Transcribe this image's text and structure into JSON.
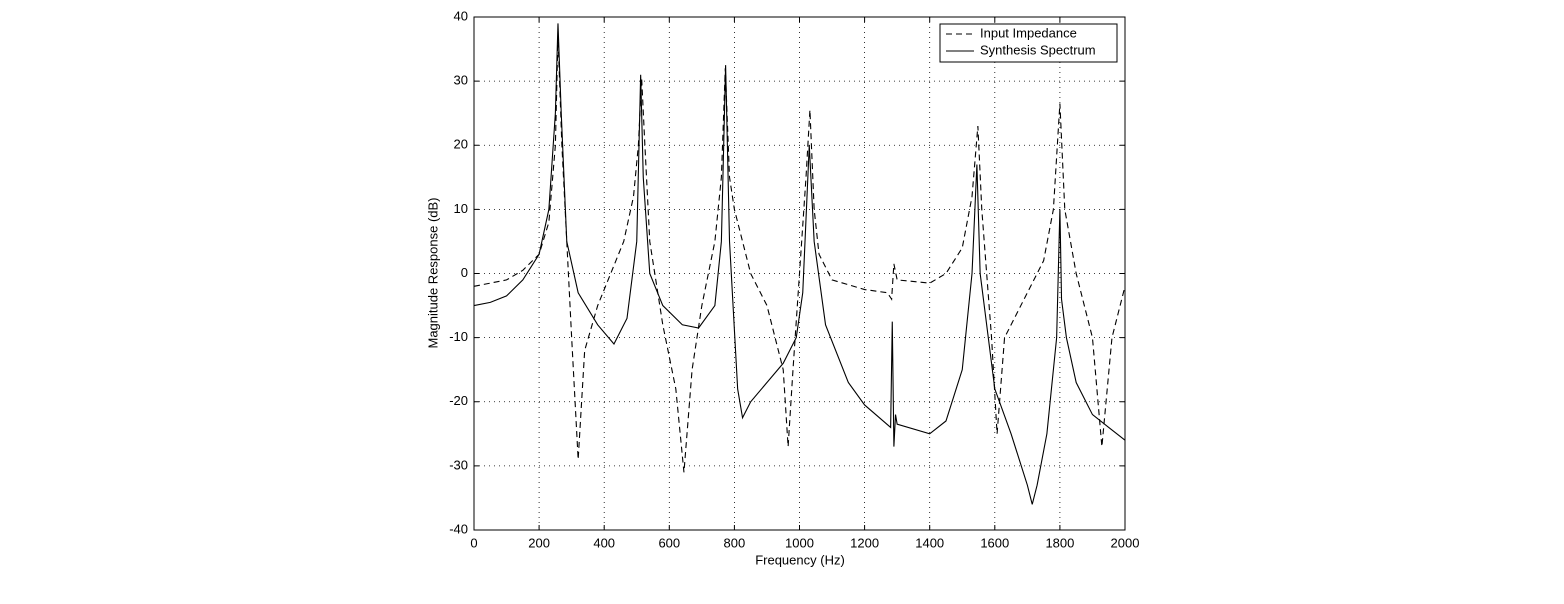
{
  "chart_data": {
    "type": "line",
    "xlabel": "Frequency (Hz)",
    "ylabel": "Magnitude Response (dB)",
    "xlim": [
      0,
      2000
    ],
    "ylim": [
      -40,
      40
    ],
    "xticks": [
      0,
      200,
      400,
      600,
      800,
      1000,
      1200,
      1400,
      1600,
      1800,
      2000
    ],
    "yticks": [
      -40,
      -30,
      -20,
      -10,
      0,
      10,
      20,
      30,
      40
    ],
    "grid": true,
    "legend": "top right",
    "series": [
      {
        "name": "Input Impedance",
        "color": "#000000",
        "dash": true,
        "x": [
          0,
          100,
          150,
          200,
          230,
          250,
          258,
          270,
          285,
          300,
          320,
          340,
          380,
          420,
          460,
          490,
          505,
          515,
          525,
          540,
          580,
          620,
          645,
          670,
          700,
          740,
          760,
          772,
          785,
          800,
          850,
          900,
          950,
          965,
          980,
          1000,
          1020,
          1032,
          1045,
          1060,
          1100,
          1200,
          1270,
          1283,
          1290,
          1300,
          1400,
          1450,
          1500,
          1530,
          1548,
          1560,
          1590,
          1607,
          1630,
          1700,
          1750,
          1780,
          1800,
          1815,
          1850,
          1900,
          1929,
          1960,
          2000
        ],
        "values": [
          -2,
          -1,
          0.5,
          3,
          8,
          20,
          37,
          20,
          5,
          -10,
          -29,
          -12,
          -5,
          0,
          5,
          12,
          20,
          30.5,
          20,
          5,
          -8,
          -18,
          -31,
          -15,
          -5,
          5,
          15,
          32,
          15,
          10,
          0,
          -5,
          -15,
          -27,
          -15,
          0,
          15,
          25.5,
          10,
          3,
          -1,
          -2.5,
          -3,
          -4,
          1.5,
          -1,
          -1.5,
          0,
          4,
          12,
          23,
          10,
          -10,
          -25,
          -10,
          -3,
          2,
          10,
          26.5,
          10,
          0,
          -10,
          -27,
          -10,
          -2
        ]
      },
      {
        "name": "Synthesis Spectrum",
        "color": "#000000",
        "dash": false,
        "x": [
          0,
          50,
          100,
          150,
          200,
          230,
          250,
          258,
          268,
          285,
          320,
          380,
          430,
          470,
          500,
          512,
          520,
          540,
          580,
          640,
          690,
          740,
          760,
          773,
          785,
          810,
          825,
          850,
          900,
          950,
          990,
          1010,
          1030,
          1045,
          1080,
          1150,
          1200,
          1280,
          1285,
          1290,
          1295,
          1300,
          1400,
          1450,
          1500,
          1530,
          1545,
          1555,
          1600,
          1650,
          1700,
          1715,
          1730,
          1760,
          1790,
          1800,
          1805,
          1820,
          1850,
          1900,
          1950,
          2000
        ],
        "values": [
          -5,
          -4.5,
          -3.5,
          -1,
          3,
          10,
          25,
          39,
          25,
          5,
          -3,
          -8,
          -11,
          -7,
          5,
          31,
          15,
          0,
          -5,
          -8,
          -8.5,
          -5,
          5,
          32.5,
          5,
          -18,
          -22.5,
          -20,
          -17,
          -14,
          -10,
          -3,
          20,
          5,
          -8,
          -17,
          -20.5,
          -24,
          -7.5,
          -27,
          -22,
          -23.5,
          -25,
          -23,
          -15,
          0,
          17,
          0,
          -18,
          -25,
          -33,
          -36,
          -33,
          -25,
          -10,
          10,
          -4,
          -10,
          -17,
          -22,
          -24,
          -26
        ]
      }
    ]
  }
}
